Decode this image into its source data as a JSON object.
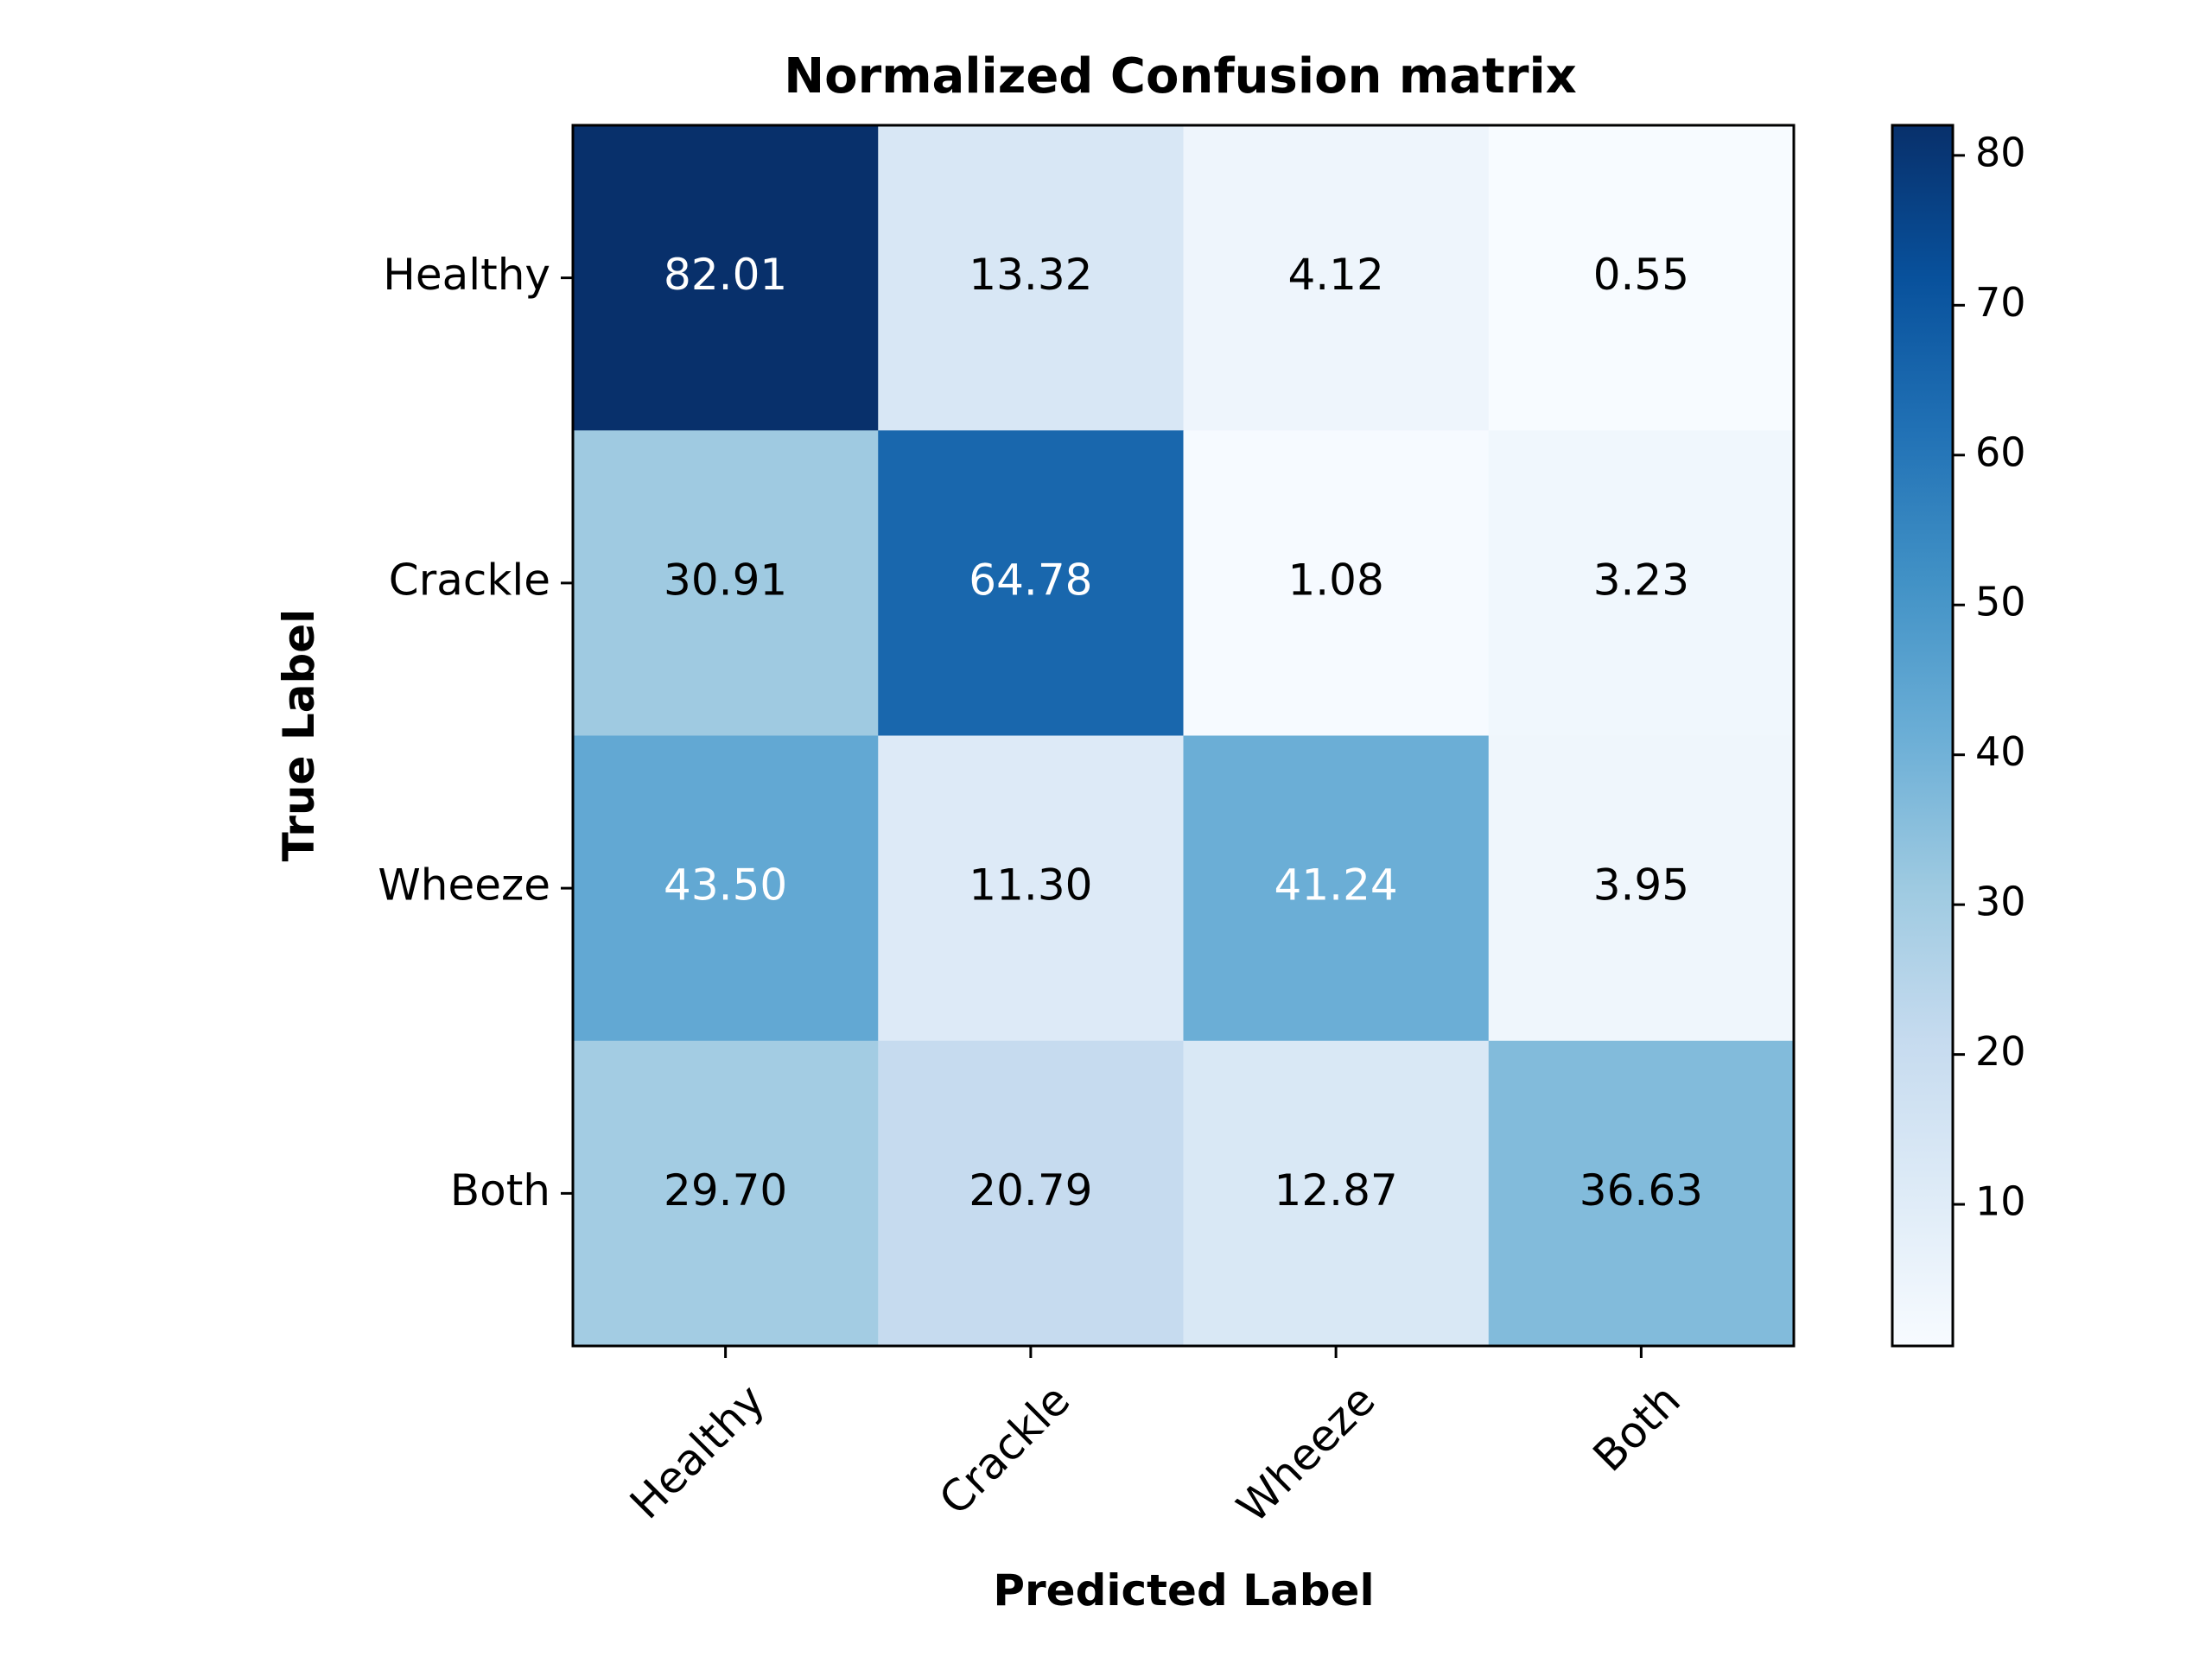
{
  "chart_data": {
    "type": "heatmap",
    "title": "Normalized Confusion matrix",
    "xlabel": "Predicted Label",
    "ylabel": "True Label",
    "x_categories": [
      "Healthy",
      "Crackle",
      "Wheeze",
      "Both"
    ],
    "y_categories": [
      "Healthy",
      "Crackle",
      "Wheeze",
      "Both"
    ],
    "values": [
      [
        82.01,
        13.32,
        4.12,
        0.55
      ],
      [
        30.91,
        64.78,
        1.08,
        3.23
      ],
      [
        43.5,
        11.3,
        41.24,
        3.95
      ],
      [
        29.7,
        20.79,
        12.87,
        36.63
      ]
    ],
    "cell_text": [
      [
        "82.01",
        "13.32",
        "4.12",
        "0.55"
      ],
      [
        "30.91",
        "64.78",
        "1.08",
        "3.23"
      ],
      [
        "43.50",
        "11.30",
        "41.24",
        "3.95"
      ],
      [
        "29.70",
        "20.79",
        "12.87",
        "36.63"
      ]
    ],
    "colormap": "Blues",
    "colorbar": {
      "min": 0.55,
      "max": 82.01,
      "ticks": [
        10,
        20,
        30,
        40,
        50,
        60,
        70,
        80
      ],
      "tick_labels": [
        "10",
        "20",
        "30",
        "40",
        "50",
        "60",
        "70",
        "80"
      ]
    },
    "text_color_light": "#ffffff",
    "text_color_dark": "#000000",
    "colors": {
      "blues": [
        "#f7fbff",
        "#deebf7",
        "#c6dbef",
        "#9ecae1",
        "#6baed6",
        "#4292c6",
        "#2171b5",
        "#08519c",
        "#08306b"
      ]
    }
  }
}
